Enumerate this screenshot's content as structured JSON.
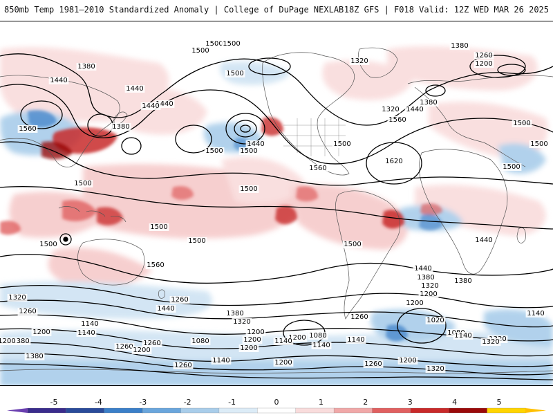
{
  "header": {
    "title_left": "850mb Temp 1981–2010 Standardized Anomaly | College of DuPage NEXLAB",
    "title_right": "18Z GFS | F018 Valid: 12Z WED MAR 26 2025"
  },
  "colorbar": {
    "ticks": [
      "-5",
      "-4",
      "-3",
      "-2",
      "-1",
      "0",
      "1",
      "2",
      "3",
      "4",
      "5"
    ],
    "colors": [
      "#3a2c8c",
      "#2a4b9a",
      "#3b7fc8",
      "#6aa6dc",
      "#a9cdea",
      "#dcecf7",
      "#ffffff",
      "#f9dcdc",
      "#f0a8a8",
      "#e06060",
      "#c82a2a",
      "#9a0a0a",
      "#ffd400"
    ],
    "end_left_color": "#6a3fb0",
    "end_right_color": "#ffc000"
  },
  "contour_labels": [
    {
      "text": "1440"
    },
    {
      "text": "1380"
    },
    {
      "text": "1440"
    },
    {
      "text": "1500"
    },
    {
      "text": "1440"
    },
    {
      "text": "1560"
    },
    {
      "text": "1380"
    },
    {
      "text": "1440"
    },
    {
      "text": "1500"
    },
    {
      "text": "1500"
    },
    {
      "text": "1440"
    },
    {
      "text": "1500"
    },
    {
      "text": "1500"
    },
    {
      "text": "1500"
    },
    {
      "text": "1380"
    },
    {
      "text": "1320"
    },
    {
      "text": "1260"
    },
    {
      "text": "1200"
    },
    {
      "text": "1380"
    },
    {
      "text": "1320"
    },
    {
      "text": "1440"
    },
    {
      "text": "1560"
    },
    {
      "text": "1500"
    },
    {
      "text": "1500"
    },
    {
      "text": "1620"
    },
    {
      "text": "1560"
    },
    {
      "text": "1500"
    },
    {
      "text": "1500"
    },
    {
      "text": "1500"
    },
    {
      "text": "1500"
    },
    {
      "text": "1500"
    },
    {
      "text": "1500"
    },
    {
      "text": "1560"
    },
    {
      "text": "1500"
    },
    {
      "text": "1440"
    },
    {
      "text": "1380"
    },
    {
      "text": "1320"
    },
    {
      "text": "1500"
    },
    {
      "text": "1440"
    },
    {
      "text": "1380"
    },
    {
      "text": "1320"
    },
    {
      "text": "1260"
    },
    {
      "text": "1200"
    },
    {
      "text": "1380"
    },
    {
      "text": "1260"
    },
    {
      "text": "1440"
    },
    {
      "text": "1380"
    },
    {
      "text": "1320"
    },
    {
      "text": "1200"
    },
    {
      "text": "1140"
    },
    {
      "text": "1140"
    },
    {
      "text": "1200"
    },
    {
      "text": "1200"
    },
    {
      "text": "1260"
    },
    {
      "text": "1200"
    },
    {
      "text": "1080"
    },
    {
      "text": "1140"
    },
    {
      "text": "1200"
    },
    {
      "text": "1080"
    },
    {
      "text": "1140"
    },
    {
      "text": "1140"
    },
    {
      "text": "1200"
    },
    {
      "text": "1260"
    },
    {
      "text": "1200"
    },
    {
      "text": "1260"
    },
    {
      "text": "1320"
    },
    {
      "text": "1020"
    },
    {
      "text": "1080"
    },
    {
      "text": "1140"
    },
    {
      "text": "1140"
    },
    {
      "text": "1320"
    },
    {
      "text": "1200"
    },
    {
      "text": "1380"
    },
    {
      "text": "1260"
    },
    {
      "text": "1140"
    },
    {
      "text": "1200"
    },
    {
      "text": "1260"
    },
    {
      "text": "1200"
    },
    {
      "text": "1320"
    }
  ]
}
